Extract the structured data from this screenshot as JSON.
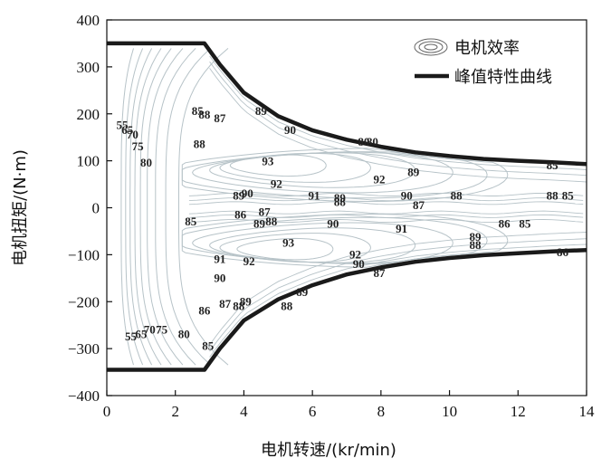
{
  "chart_data": {
    "type": "contour",
    "xlabel": "电机转速/(kr/min)",
    "ylabel": "电机扭矩/(N·m)",
    "xlim": [
      0,
      14
    ],
    "ylim": [
      -400,
      400
    ],
    "xticks": [
      "0",
      "2",
      "4",
      "6",
      "8",
      "10",
      "12",
      "14"
    ],
    "yticks": [
      "400",
      "300",
      "200",
      "100",
      "0",
      "−100",
      "−200",
      "−300",
      "−400"
    ],
    "legend": [
      {
        "name": "电机效率",
        "symbol": "contour"
      },
      {
        "name": "峰值特性曲线",
        "symbol": "thick-line"
      }
    ],
    "legend_position": "top-right",
    "peak_curve_upper": {
      "x": [
        0,
        2.85,
        3.3,
        4,
        5,
        6,
        7,
        8,
        9,
        10,
        11,
        12,
        13,
        14
      ],
      "y": [
        350,
        350,
        305,
        245,
        195,
        165,
        145,
        130,
        118,
        110,
        104,
        100,
        97,
        93
      ]
    },
    "peak_curve_lower": {
      "x": [
        0,
        2.85,
        3.3,
        4,
        5,
        6,
        7,
        8,
        9,
        10,
        11,
        12,
        13,
        14
      ],
      "y": [
        -345,
        -345,
        -300,
        -240,
        -195,
        -165,
        -142,
        -127,
        -115,
        -107,
        -101,
        -97,
        -93,
        -90
      ]
    },
    "efficiency_labels": [
      {
        "text": "55",
        "x": 0.45,
        "y": 175
      },
      {
        "text": "65",
        "x": 0.6,
        "y": 165
      },
      {
        "text": "70",
        "x": 0.75,
        "y": 155
      },
      {
        "text": "75",
        "x": 0.9,
        "y": 130
      },
      {
        "text": "80",
        "x": 1.15,
        "y": 95
      },
      {
        "text": "85",
        "x": 2.65,
        "y": 205
      },
      {
        "text": "88",
        "x": 2.85,
        "y": 198
      },
      {
        "text": "87",
        "x": 3.3,
        "y": 190
      },
      {
        "text": "88",
        "x": 2.7,
        "y": 135
      },
      {
        "text": "89",
        "x": 4.5,
        "y": 205
      },
      {
        "text": "90",
        "x": 5.35,
        "y": 165
      },
      {
        "text": "93",
        "x": 4.7,
        "y": 98
      },
      {
        "text": "92",
        "x": 4.95,
        "y": 50
      },
      {
        "text": "89",
        "x": 3.85,
        "y": 25
      },
      {
        "text": "90",
        "x": 4.1,
        "y": 30
      },
      {
        "text": "91",
        "x": 6.05,
        "y": 25
      },
      {
        "text": "89",
        "x": 6.8,
        "y": 20
      },
      {
        "text": "88",
        "x": 6.8,
        "y": 12
      },
      {
        "text": "80",
        "x": 7.5,
        "y": 140
      },
      {
        "text": "80",
        "x": 7.75,
        "y": 140
      },
      {
        "text": "92",
        "x": 7.95,
        "y": 60
      },
      {
        "text": "89",
        "x": 8.95,
        "y": 75
      },
      {
        "text": "90",
        "x": 8.75,
        "y": 25
      },
      {
        "text": "87",
        "x": 9.1,
        "y": 5
      },
      {
        "text": "88",
        "x": 10.2,
        "y": 25
      },
      {
        "text": "85",
        "x": 2.45,
        "y": -30
      },
      {
        "text": "86",
        "x": 3.9,
        "y": -15
      },
      {
        "text": "87",
        "x": 4.6,
        "y": -10
      },
      {
        "text": "89",
        "x": 4.45,
        "y": -35
      },
      {
        "text": "88",
        "x": 4.8,
        "y": -30
      },
      {
        "text": "90",
        "x": 6.6,
        "y": -35
      },
      {
        "text": "91",
        "x": 8.6,
        "y": -45
      },
      {
        "text": "93",
        "x": 5.3,
        "y": -75
      },
      {
        "text": "92",
        "x": 4.15,
        "y": -115
      },
      {
        "text": "91",
        "x": 3.3,
        "y": -110
      },
      {
        "text": "90",
        "x": 3.3,
        "y": -150
      },
      {
        "text": "92",
        "x": 7.25,
        "y": -100
      },
      {
        "text": "90",
        "x": 7.35,
        "y": -120
      },
      {
        "text": "87",
        "x": 7.95,
        "y": -140
      },
      {
        "text": "86",
        "x": 11.6,
        "y": -35
      },
      {
        "text": "85",
        "x": 12.2,
        "y": -35
      },
      {
        "text": "89",
        "x": 10.75,
        "y": -63
      },
      {
        "text": "88",
        "x": 10.75,
        "y": -80
      },
      {
        "text": "89",
        "x": 5.7,
        "y": -180
      },
      {
        "text": "88",
        "x": 5.25,
        "y": -210
      },
      {
        "text": "89",
        "x": 4.05,
        "y": -200
      },
      {
        "text": "88",
        "x": 3.85,
        "y": -210
      },
      {
        "text": "87",
        "x": 3.45,
        "y": -205
      },
      {
        "text": "86",
        "x": 2.85,
        "y": -220
      },
      {
        "text": "80",
        "x": 2.25,
        "y": -270
      },
      {
        "text": "85",
        "x": 2.95,
        "y": -295
      },
      {
        "text": "75",
        "x": 1.6,
        "y": -260
      },
      {
        "text": "70",
        "x": 1.25,
        "y": -260
      },
      {
        "text": "65",
        "x": 1.0,
        "y": -270
      },
      {
        "text": "55",
        "x": 0.7,
        "y": -275
      },
      {
        "text": "85",
        "x": 13.0,
        "y": 90
      },
      {
        "text": "88",
        "x": 13.0,
        "y": 25
      },
      {
        "text": "85",
        "x": 13.45,
        "y": 25
      },
      {
        "text": "86",
        "x": 13.3,
        "y": -95
      }
    ],
    "colors": {
      "peak_curve": "#1a1a1a",
      "contour_lines": "#b7c3c8",
      "axis": "#111111"
    }
  }
}
